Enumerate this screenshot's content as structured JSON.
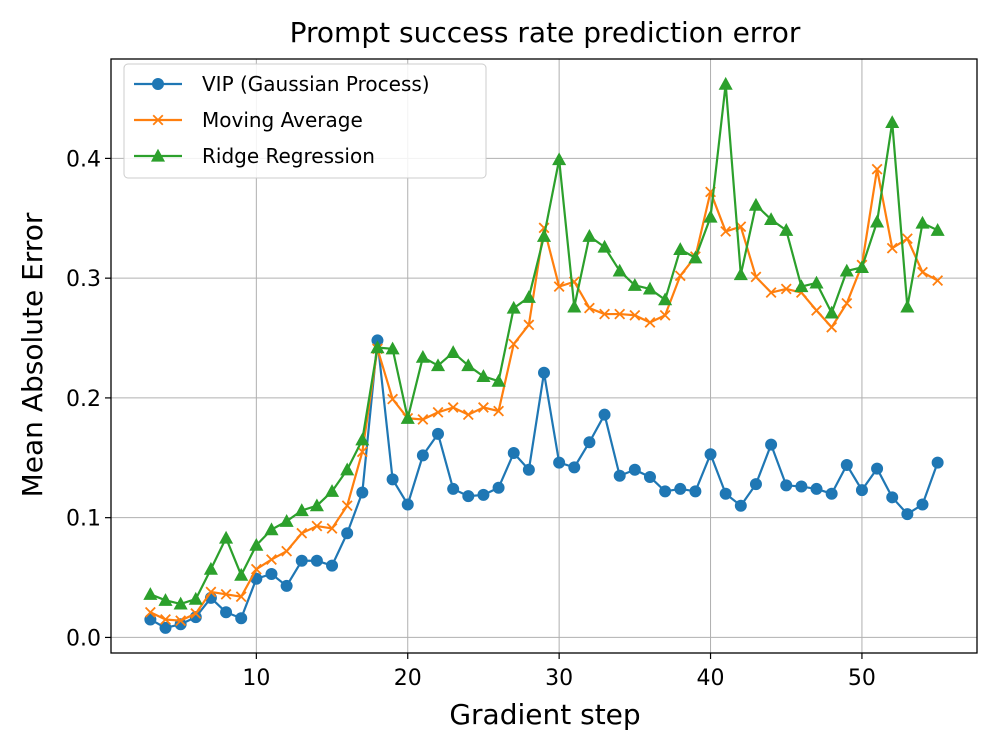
{
  "chart_data": {
    "type": "line",
    "title": "Prompt success rate prediction error",
    "xlabel": "Gradient step",
    "ylabel": "Mean Absolute Error",
    "xlim": [
      0.4,
      57.6
    ],
    "ylim": [
      -0.013,
      0.483
    ],
    "xticks": [
      10,
      20,
      30,
      40,
      50
    ],
    "yticks": [
      0.0,
      0.1,
      0.2,
      0.3,
      0.4
    ],
    "xtick_labels": [
      "10",
      "20",
      "30",
      "40",
      "50"
    ],
    "ytick_labels": [
      "0.0",
      "0.1",
      "0.2",
      "0.3",
      "0.4"
    ],
    "grid": true,
    "legend_position": "top-left",
    "x": [
      3,
      4,
      5,
      6,
      7,
      8,
      9,
      10,
      11,
      12,
      13,
      14,
      15,
      16,
      17,
      18,
      19,
      20,
      21,
      22,
      23,
      24,
      25,
      26,
      27,
      28,
      29,
      30,
      31,
      32,
      33,
      34,
      35,
      36,
      37,
      38,
      39,
      40,
      41,
      42,
      43,
      44,
      45,
      46,
      47,
      48,
      49,
      50,
      51,
      52,
      53,
      54,
      55
    ],
    "series": [
      {
        "name": "VIP (Gaussian Process)",
        "color": "#1f77b4",
        "marker": "circle",
        "values": [
          0.015,
          0.008,
          0.011,
          0.017,
          0.033,
          0.021,
          0.016,
          0.049,
          0.053,
          0.043,
          0.064,
          0.064,
          0.06,
          0.087,
          0.121,
          0.248,
          0.132,
          0.111,
          0.152,
          0.17,
          0.124,
          0.118,
          0.119,
          0.125,
          0.154,
          0.14,
          0.221,
          0.146,
          0.142,
          0.163,
          0.186,
          0.135,
          0.14,
          0.134,
          0.122,
          0.124,
          0.122,
          0.153,
          0.12,
          0.11,
          0.128,
          0.161,
          0.127,
          0.126,
          0.124,
          0.12,
          0.144,
          0.123,
          0.141,
          0.117,
          0.103,
          0.111,
          0.146
        ]
      },
      {
        "name": "Moving Average",
        "color": "#ff7f0e",
        "marker": "x",
        "values": [
          0.021,
          0.015,
          0.014,
          0.02,
          0.038,
          0.036,
          0.034,
          0.057,
          0.065,
          0.072,
          0.087,
          0.093,
          0.091,
          0.11,
          0.155,
          0.241,
          0.199,
          0.183,
          0.182,
          0.188,
          0.192,
          0.186,
          0.192,
          0.189,
          0.245,
          0.261,
          0.342,
          0.293,
          0.297,
          0.275,
          0.27,
          0.27,
          0.269,
          0.263,
          0.269,
          0.302,
          0.318,
          0.372,
          0.339,
          0.343,
          0.301,
          0.288,
          0.291,
          0.288,
          0.273,
          0.259,
          0.279,
          0.311,
          0.391,
          0.325,
          0.333,
          0.305,
          0.298
        ]
      },
      {
        "name": "Ridge Regression",
        "color": "#2ca02c",
        "marker": "triangle",
        "values": [
          0.036,
          0.031,
          0.028,
          0.032,
          0.057,
          0.083,
          0.052,
          0.077,
          0.09,
          0.097,
          0.106,
          0.11,
          0.122,
          0.14,
          0.165,
          0.242,
          0.241,
          0.183,
          0.234,
          0.227,
          0.238,
          0.227,
          0.218,
          0.214,
          0.275,
          0.284,
          0.335,
          0.399,
          0.276,
          0.335,
          0.326,
          0.306,
          0.294,
          0.291,
          0.282,
          0.324,
          0.317,
          0.351,
          0.462,
          0.303,
          0.361,
          0.349,
          0.34,
          0.293,
          0.296,
          0.271,
          0.306,
          0.309,
          0.347,
          0.43,
          0.276,
          0.346,
          0.34
        ]
      }
    ]
  }
}
